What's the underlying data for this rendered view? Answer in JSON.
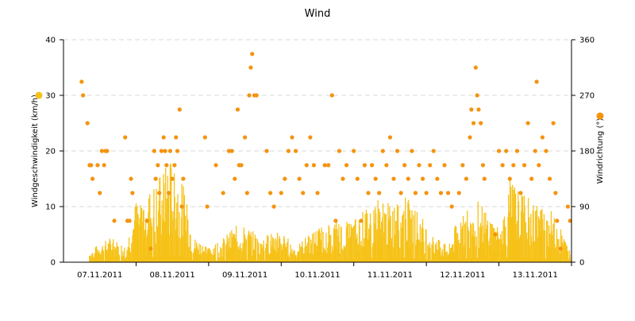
{
  "chart_data": {
    "type": "bar+scatter",
    "title": "Wind",
    "y_left_label": "Windgeschwindigkeit (km/h)",
    "y_right_label": "Windrichtung (°)",
    "y_left_range": [
      0,
      40
    ],
    "y_right_range": [
      0,
      360
    ],
    "y_left_ticks": [
      "0",
      "10",
      "20",
      "30",
      "40"
    ],
    "y_right_ticks": [
      "0",
      "90",
      "180",
      "270",
      "360"
    ],
    "x_range": [
      0,
      7
    ],
    "x_tick_labels": [
      "07.11.2011",
      "08.11.2011",
      "09.11.2011",
      "10.11.2011",
      "11.11.2011",
      "12.11.2011",
      "13.11.2011"
    ],
    "grid": "horizontal dashed",
    "colors": {
      "speed": "#f6c218",
      "direction": "#f5930f",
      "axis": "#000000",
      "grid": "#d9d9d9"
    },
    "series": [
      {
        "name": "",
        "kind": "bars",
        "axis": "left",
        "envelope": [
          [
            0.0,
            0
          ],
          [
            0.2,
            0
          ],
          [
            0.45,
            2
          ],
          [
            0.65,
            3
          ],
          [
            0.85,
            2
          ],
          [
            1.0,
            8
          ],
          [
            1.2,
            9
          ],
          [
            1.35,
            11
          ],
          [
            1.5,
            13
          ],
          [
            1.65,
            9
          ],
          [
            1.8,
            3
          ],
          [
            2.0,
            2
          ],
          [
            2.2,
            3
          ],
          [
            2.45,
            5
          ],
          [
            2.7,
            3
          ],
          [
            2.95,
            4
          ],
          [
            3.2,
            2
          ],
          [
            3.45,
            4
          ],
          [
            3.7,
            5
          ],
          [
            3.95,
            5
          ],
          [
            4.1,
            6
          ],
          [
            4.3,
            8
          ],
          [
            4.5,
            7
          ],
          [
            4.7,
            8
          ],
          [
            4.9,
            6
          ],
          [
            5.1,
            3
          ],
          [
            5.3,
            2
          ],
          [
            5.45,
            6
          ],
          [
            5.65,
            8
          ],
          [
            5.85,
            6
          ],
          [
            6.0,
            4
          ],
          [
            6.15,
            10
          ],
          [
            6.35,
            8
          ],
          [
            6.55,
            7
          ],
          [
            6.75,
            6
          ],
          [
            6.9,
            3
          ],
          [
            7.0,
            1
          ]
        ]
      },
      {
        "name": "",
        "kind": "scatter",
        "axis": "right",
        "points": [
          [
            0.25,
            292
          ],
          [
            0.27,
            270
          ],
          [
            0.33,
            225
          ],
          [
            0.36,
            157
          ],
          [
            0.38,
            157
          ],
          [
            0.4,
            135
          ],
          [
            0.47,
            157
          ],
          [
            0.5,
            112
          ],
          [
            0.53,
            180
          ],
          [
            0.56,
            157
          ],
          [
            0.58,
            180
          ],
          [
            0.6,
            180
          ],
          [
            0.7,
            67
          ],
          [
            0.85,
            202
          ],
          [
            0.88,
            67
          ],
          [
            0.91,
            67
          ],
          [
            0.93,
            135
          ],
          [
            0.95,
            112
          ],
          [
            1.15,
            67
          ],
          [
            1.2,
            22
          ],
          [
            1.25,
            180
          ],
          [
            1.27,
            135
          ],
          [
            1.3,
            157
          ],
          [
            1.32,
            112
          ],
          [
            1.35,
            180
          ],
          [
            1.38,
            202
          ],
          [
            1.4,
            180
          ],
          [
            1.42,
            157
          ],
          [
            1.45,
            112
          ],
          [
            1.47,
            180
          ],
          [
            1.5,
            135
          ],
          [
            1.53,
            157
          ],
          [
            1.55,
            202
          ],
          [
            1.57,
            180
          ],
          [
            1.6,
            247
          ],
          [
            1.63,
            90
          ],
          [
            1.65,
            135
          ],
          [
            1.95,
            202
          ],
          [
            1.98,
            90
          ],
          [
            2.1,
            157
          ],
          [
            2.2,
            112
          ],
          [
            2.28,
            180
          ],
          [
            2.32,
            180
          ],
          [
            2.36,
            135
          ],
          [
            2.4,
            247
          ],
          [
            2.42,
            157
          ],
          [
            2.45,
            157
          ],
          [
            2.5,
            202
          ],
          [
            2.53,
            112
          ],
          [
            2.56,
            270
          ],
          [
            2.58,
            315
          ],
          [
            2.6,
            337
          ],
          [
            2.63,
            270
          ],
          [
            2.66,
            270
          ],
          [
            2.8,
            180
          ],
          [
            2.85,
            112
          ],
          [
            2.9,
            90
          ],
          [
            3.0,
            112
          ],
          [
            3.05,
            135
          ],
          [
            3.1,
            180
          ],
          [
            3.15,
            202
          ],
          [
            3.2,
            180
          ],
          [
            3.25,
            135
          ],
          [
            3.3,
            112
          ],
          [
            3.35,
            157
          ],
          [
            3.4,
            202
          ],
          [
            3.45,
            157
          ],
          [
            3.5,
            112
          ],
          [
            3.6,
            157
          ],
          [
            3.65,
            157
          ],
          [
            3.7,
            270
          ],
          [
            3.75,
            67
          ],
          [
            3.8,
            180
          ],
          [
            3.85,
            135
          ],
          [
            3.9,
            157
          ],
          [
            4.0,
            180
          ],
          [
            4.05,
            135
          ],
          [
            4.1,
            67
          ],
          [
            4.15,
            157
          ],
          [
            4.2,
            112
          ],
          [
            4.25,
            157
          ],
          [
            4.3,
            135
          ],
          [
            4.35,
            112
          ],
          [
            4.4,
            180
          ],
          [
            4.45,
            157
          ],
          [
            4.5,
            202
          ],
          [
            4.55,
            135
          ],
          [
            4.6,
            180
          ],
          [
            4.65,
            112
          ],
          [
            4.7,
            157
          ],
          [
            4.75,
            135
          ],
          [
            4.8,
            180
          ],
          [
            4.85,
            112
          ],
          [
            4.9,
            157
          ],
          [
            4.95,
            135
          ],
          [
            5.0,
            112
          ],
          [
            5.05,
            157
          ],
          [
            5.1,
            180
          ],
          [
            5.15,
            135
          ],
          [
            5.2,
            112
          ],
          [
            5.25,
            157
          ],
          [
            5.3,
            112
          ],
          [
            5.35,
            90
          ],
          [
            5.45,
            112
          ],
          [
            5.5,
            157
          ],
          [
            5.55,
            135
          ],
          [
            5.6,
            202
          ],
          [
            5.62,
            247
          ],
          [
            5.65,
            225
          ],
          [
            5.68,
            315
          ],
          [
            5.7,
            270
          ],
          [
            5.72,
            247
          ],
          [
            5.75,
            225
          ],
          [
            5.78,
            157
          ],
          [
            5.8,
            135
          ],
          [
            5.95,
            45
          ],
          [
            6.0,
            180
          ],
          [
            6.05,
            157
          ],
          [
            6.1,
            180
          ],
          [
            6.15,
            135
          ],
          [
            6.2,
            157
          ],
          [
            6.25,
            180
          ],
          [
            6.3,
            112
          ],
          [
            6.35,
            157
          ],
          [
            6.4,
            225
          ],
          [
            6.45,
            135
          ],
          [
            6.5,
            180
          ],
          [
            6.52,
            292
          ],
          [
            6.55,
            157
          ],
          [
            6.6,
            202
          ],
          [
            6.65,
            180
          ],
          [
            6.7,
            135
          ],
          [
            6.75,
            225
          ],
          [
            6.78,
            112
          ],
          [
            6.8,
            67
          ],
          [
            6.85,
            22
          ],
          [
            6.95,
            90
          ],
          [
            6.98,
            67
          ]
        ]
      }
    ]
  }
}
